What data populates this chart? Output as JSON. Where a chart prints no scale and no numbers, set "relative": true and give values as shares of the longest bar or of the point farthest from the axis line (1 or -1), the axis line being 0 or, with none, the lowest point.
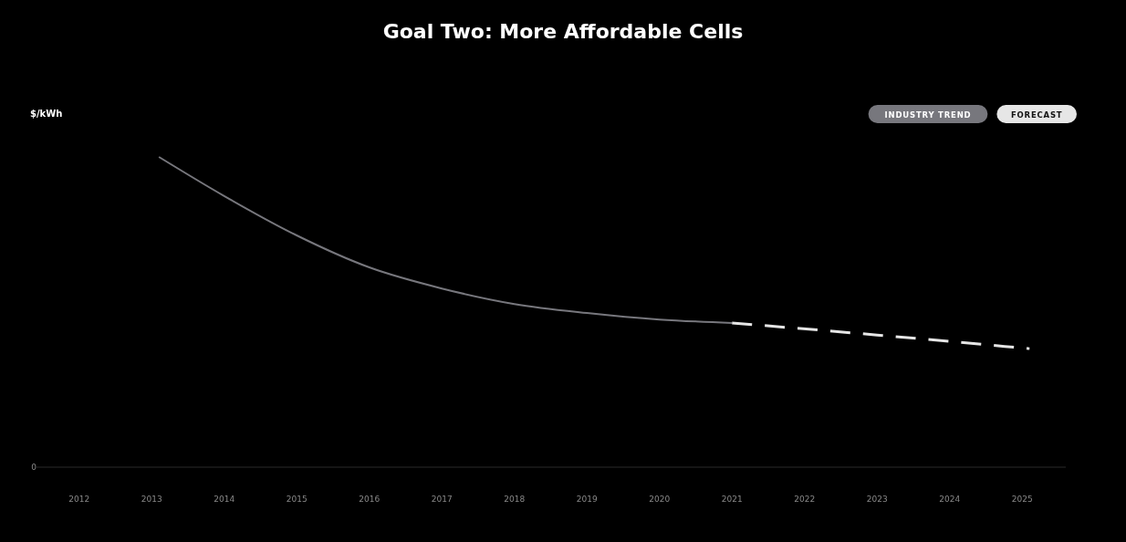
{
  "chart_data": {
    "type": "line",
    "title": "Goal Two: More Affordable Cells",
    "ylabel": "$/kWh",
    "relative": true,
    "annotations": [
      "0"
    ],
    "xlim": [
      2011.4,
      2025.6
    ],
    "xticks": [
      2012,
      2013,
      2014,
      2015,
      2016,
      2017,
      2018,
      2019,
      2020,
      2021,
      2022,
      2023,
      2024,
      2025
    ],
    "legend": "top right",
    "grid": false,
    "series": [
      {
        "name": "INDUSTRY TREND",
        "color": "#77777d",
        "line_style": "solid",
        "x": [
          2013.1,
          2014,
          2015,
          2016,
          2017,
          2018,
          2019,
          2020,
          2021
        ],
        "values": [
          1,
          0.874,
          0.747,
          0.644,
          0.576,
          0.526,
          0.497,
          0.476,
          0.465
        ]
      },
      {
        "name": "FORECAST",
        "color": "#e6e6e6",
        "line_style": "dashed",
        "x": [
          2021,
          2023,
          2025.1
        ],
        "values": [
          0.465,
          0.426,
          0.382
        ]
      }
    ]
  }
}
